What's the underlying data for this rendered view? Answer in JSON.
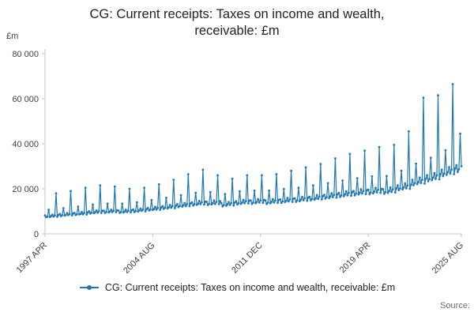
{
  "title": "CG: Current receipts: Taxes on income and wealth, receivable: £m",
  "y_axis_unit_label": "£m",
  "legend": {
    "label": "CG: Current receipts: Taxes on income and wealth, receivable: £m"
  },
  "source_label": "Source:",
  "colors": {
    "line": "#1f77b4",
    "axis": "#c6c6c6",
    "tick_text": "#414042",
    "title_text": "#222222",
    "source_text": "#707070"
  },
  "chart_data": {
    "type": "line",
    "title": "CG: Current receipts: Taxes on income and wealth, receivable: £m",
    "xlabel": "",
    "ylabel": "£m",
    "ylim": [
      0,
      80000
    ],
    "grid": false,
    "legend_position": "bottom",
    "markers": true,
    "frequency": "monthly",
    "x_start": "1997-04",
    "x_end": "2025-08",
    "x_tick_labels": [
      "1997 APR",
      "2004 AUG",
      "2011 DEC",
      "2019 APR",
      "2025 AUG"
    ],
    "x_tick_indices": [
      0,
      88,
      176,
      264,
      340
    ],
    "y_ticks": {
      "values": [
        0,
        20000,
        40000,
        60000,
        80000
      ],
      "labels": [
        "0",
        "20 000",
        "40 000",
        "60 000",
        "80 000"
      ]
    },
    "series": [
      {
        "name": "CG: Current receipts: Taxes on income and wealth, receivable: £m",
        "values": [
          8200,
          7400,
          7700,
          10700,
          7500,
          7900,
          8500,
          7700,
          8200,
          18000,
          7600,
          8400,
          8800,
          7900,
          8300,
          11400,
          8100,
          8400,
          9200,
          8300,
          8800,
          19000,
          8200,
          9000,
          9300,
          8400,
          8700,
          12100,
          8600,
          8900,
          9700,
          8700,
          9300,
          20500,
          8600,
          9500,
          10000,
          9000,
          9400,
          13000,
          9200,
          9600,
          10400,
          9400,
          10000,
          21500,
          9300,
          10200,
          10300,
          9300,
          9700,
          13400,
          9500,
          9900,
          10700,
          9700,
          10300,
          21000,
          9600,
          10500,
          10300,
          9300,
          9700,
          13400,
          9500,
          9900,
          10700,
          9700,
          10300,
          20000,
          9600,
          10500,
          10800,
          9700,
          10200,
          14000,
          9900,
          10400,
          11200,
          10200,
          10800,
          20500,
          10000,
          11000,
          11500,
          10400,
          10800,
          15000,
          10600,
          11000,
          12000,
          10800,
          11500,
          22000,
          10700,
          11700,
          12300,
          11100,
          11600,
          16000,
          11300,
          11800,
          12800,
          11600,
          12300,
          24000,
          11400,
          12500,
          13200,
          11900,
          12400,
          17200,
          12100,
          12700,
          13700,
          12400,
          13200,
          26500,
          12300,
          13500,
          14000,
          12600,
          13200,
          18200,
          12900,
          13400,
          14600,
          13200,
          14000,
          28500,
          13000,
          14300,
          14200,
          12800,
          13300,
          18500,
          13100,
          13600,
          14800,
          13300,
          14200,
          26000,
          13200,
          14500,
          13600,
          12200,
          12800,
          17700,
          12500,
          13100,
          14100,
          12800,
          13600,
          24500,
          12600,
          13900,
          14500,
          13100,
          13600,
          18900,
          13300,
          13900,
          15100,
          13600,
          14500,
          26000,
          13500,
          14800,
          14800,
          13300,
          13900,
          19200,
          13600,
          14200,
          15400,
          13900,
          14800,
          26000,
          13800,
          15100,
          14800,
          13300,
          13900,
          19200,
          13600,
          14200,
          15400,
          13900,
          14800,
          26500,
          13800,
          15100,
          15300,
          13800,
          14400,
          19900,
          14100,
          14700,
          15900,
          14400,
          15300,
          28000,
          14200,
          15600,
          15800,
          14200,
          14900,
          20500,
          14500,
          15200,
          16400,
          14900,
          15800,
          29500,
          14700,
          16100,
          16500,
          14900,
          15500,
          21500,
          15200,
          15800,
          17200,
          15500,
          16500,
          31000,
          15300,
          16800,
          17300,
          15600,
          16300,
          22500,
          15900,
          16600,
          18000,
          16300,
          17300,
          33500,
          16100,
          17600,
          18200,
          16400,
          17100,
          23700,
          16700,
          17500,
          18900,
          17100,
          18200,
          35500,
          16900,
          18600,
          19000,
          17100,
          17900,
          24700,
          17500,
          18200,
          19800,
          17900,
          19000,
          37000,
          17700,
          19400,
          19600,
          17600,
          18400,
          25500,
          18000,
          18800,
          20400,
          18400,
          19600,
          38500,
          18200,
          20000,
          19800,
          17800,
          18600,
          25700,
          18200,
          19000,
          20600,
          18600,
          19800,
          39500,
          18400,
          20200,
          21500,
          19400,
          20200,
          28000,
          19800,
          20600,
          22400,
          20200,
          21500,
          45500,
          20000,
          21900,
          24000,
          21600,
          22600,
          31200,
          22100,
          23000,
          25000,
          22600,
          24000,
          60500,
          22300,
          24500,
          26000,
          23400,
          24400,
          33800,
          23900,
          25000,
          27000,
          24400,
          26000,
          61500,
          24200,
          26500,
          28500,
          25700,
          26800,
          37100,
          26200,
          27400,
          29600,
          26800,
          28500,
          66500,
          26500,
          29100,
          30500,
          27500,
          28700,
          44500,
          30000
        ]
      }
    ]
  }
}
